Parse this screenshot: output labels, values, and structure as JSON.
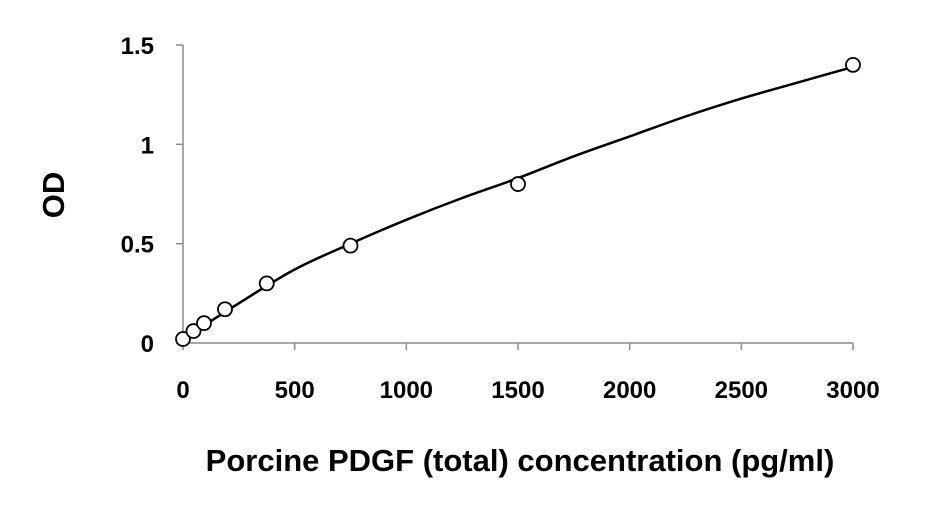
{
  "chart_data": {
    "type": "scatter",
    "title": "",
    "xlabel": "Porcine PDGF (total) concentration (pg/ml)",
    "ylabel": "OD",
    "xlim": [
      0,
      3000
    ],
    "ylim": [
      0,
      1.5
    ],
    "x_ticks": [
      0,
      500,
      1000,
      1500,
      2000,
      2500,
      3000
    ],
    "x_tick_labels": [
      "0",
      "500",
      "1000",
      "1500",
      "2000",
      "2500",
      "3000"
    ],
    "y_ticks": [
      0,
      0.5,
      1,
      1.5
    ],
    "y_tick_labels": [
      "0",
      "0.5",
      "1",
      "1.5"
    ],
    "grid": false,
    "legend": "none",
    "series": [
      {
        "points": [
          {
            "x": 0,
            "y": 0.02
          },
          {
            "x": 47,
            "y": 0.06
          },
          {
            "x": 94,
            "y": 0.1
          },
          {
            "x": 188,
            "y": 0.17
          },
          {
            "x": 375,
            "y": 0.3
          },
          {
            "x": 750,
            "y": 0.49
          },
          {
            "x": 1500,
            "y": 0.8
          },
          {
            "x": 3000,
            "y": 1.4
          }
        ],
        "marker": "open-circle",
        "color": "#000000"
      }
    ],
    "fit_curve": {
      "kind": "smooth trend line",
      "color": "#000000",
      "points": [
        {
          "x": 0,
          "y": 0.02
        },
        {
          "x": 250,
          "y": 0.2
        },
        {
          "x": 500,
          "y": 0.37
        },
        {
          "x": 750,
          "y": 0.5
        },
        {
          "x": 1000,
          "y": 0.62
        },
        {
          "x": 1250,
          "y": 0.73
        },
        {
          "x": 1500,
          "y": 0.83
        },
        {
          "x": 1750,
          "y": 0.94
        },
        {
          "x": 2000,
          "y": 1.04
        },
        {
          "x": 2250,
          "y": 1.14
        },
        {
          "x": 2500,
          "y": 1.23
        },
        {
          "x": 2750,
          "y": 1.31
        },
        {
          "x": 3000,
          "y": 1.39
        }
      ]
    }
  }
}
